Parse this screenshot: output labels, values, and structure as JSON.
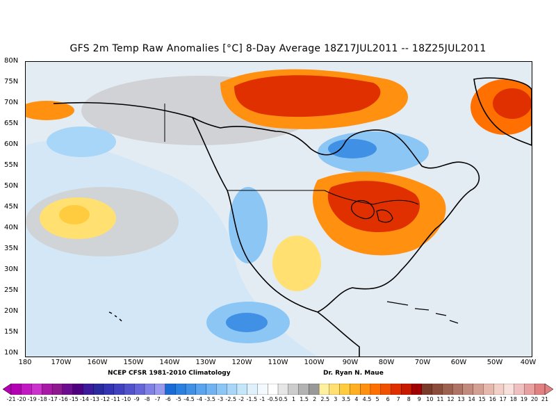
{
  "title": "GFS 2m Temp Raw Anomalies [°C] 8-Day Average 18Z17JUL2011 -- 18Z25JUL2011",
  "credits": {
    "climatology": "NCEP CFSR 1981-2010 Climatology",
    "author": "Dr. Ryan N. Maue"
  },
  "y_axis_labels": [
    "80N",
    "75N",
    "70N",
    "65N",
    "60N",
    "55N",
    "50N",
    "45N",
    "40N",
    "35N",
    "30N",
    "25N",
    "20N",
    "15N",
    "10N"
  ],
  "x_axis_labels": [
    "180",
    "170W",
    "160W",
    "150W",
    "140W",
    "130W",
    "120W",
    "110W",
    "100W",
    "90W",
    "80W",
    "70W",
    "60W",
    "50W",
    "40W"
  ],
  "colorbar": {
    "labels": [
      "-21",
      "-20",
      "-19",
      "-18",
      "-17",
      "-16",
      "-15",
      "-14",
      "-13",
      "-12",
      "-11",
      "-10",
      "-9",
      "-8",
      "-7",
      "-6",
      "-5",
      "-4.5",
      "-4",
      "-3.5",
      "-3",
      "-2.5",
      "-2",
      "-1.5",
      "-1",
      "-0.5",
      "0.5",
      "1",
      "1.5",
      "2",
      "2.5",
      "3",
      "3.5",
      "4",
      "4.5",
      "5",
      "6",
      "7",
      "8",
      "9",
      "10",
      "11",
      "12",
      "13",
      "14",
      "15",
      "16",
      "17",
      "18",
      "19",
      "20",
      "21"
    ],
    "colors": [
      "#b300b3",
      "#c21ac2",
      "#cc33cc",
      "#a61aa6",
      "#8f1a8f",
      "#6b0d8f",
      "#4d0080",
      "#3d1a99",
      "#2a2a9e",
      "#3333b3",
      "#4040c0",
      "#5252cc",
      "#6666d9",
      "#8080e6",
      "#9999ee",
      "#1a6bd6",
      "#2a80e0",
      "#4090e6",
      "#5aa3ee",
      "#70b3f2",
      "#8cc6f5",
      "#a8d6f8",
      "#c4e6fb",
      "#dff1fd",
      "#f2f9ff",
      "#ffffff",
      "#e6e6e6",
      "#cccccc",
      "#b3b3b3",
      "#999999",
      "#fff0a0",
      "#ffe070",
      "#ffcc40",
      "#ffb020",
      "#ff9010",
      "#ff7000",
      "#f05000",
      "#e03000",
      "#c81a00",
      "#a00000",
      "#7a3a2a",
      "#8c4c3c",
      "#9e6050",
      "#b07466",
      "#c28a7c",
      "#d4a094",
      "#e6b8ae",
      "#f2d0c8",
      "#f8e0dc",
      "#f0c0c0",
      "#e8a0a0",
      "#e08080"
    ]
  },
  "colors": {
    "ocean_base": "#dfe7ef",
    "coastline": "#000000",
    "warm_strong": "#e03000",
    "cool_strong": "#2a80e0"
  }
}
